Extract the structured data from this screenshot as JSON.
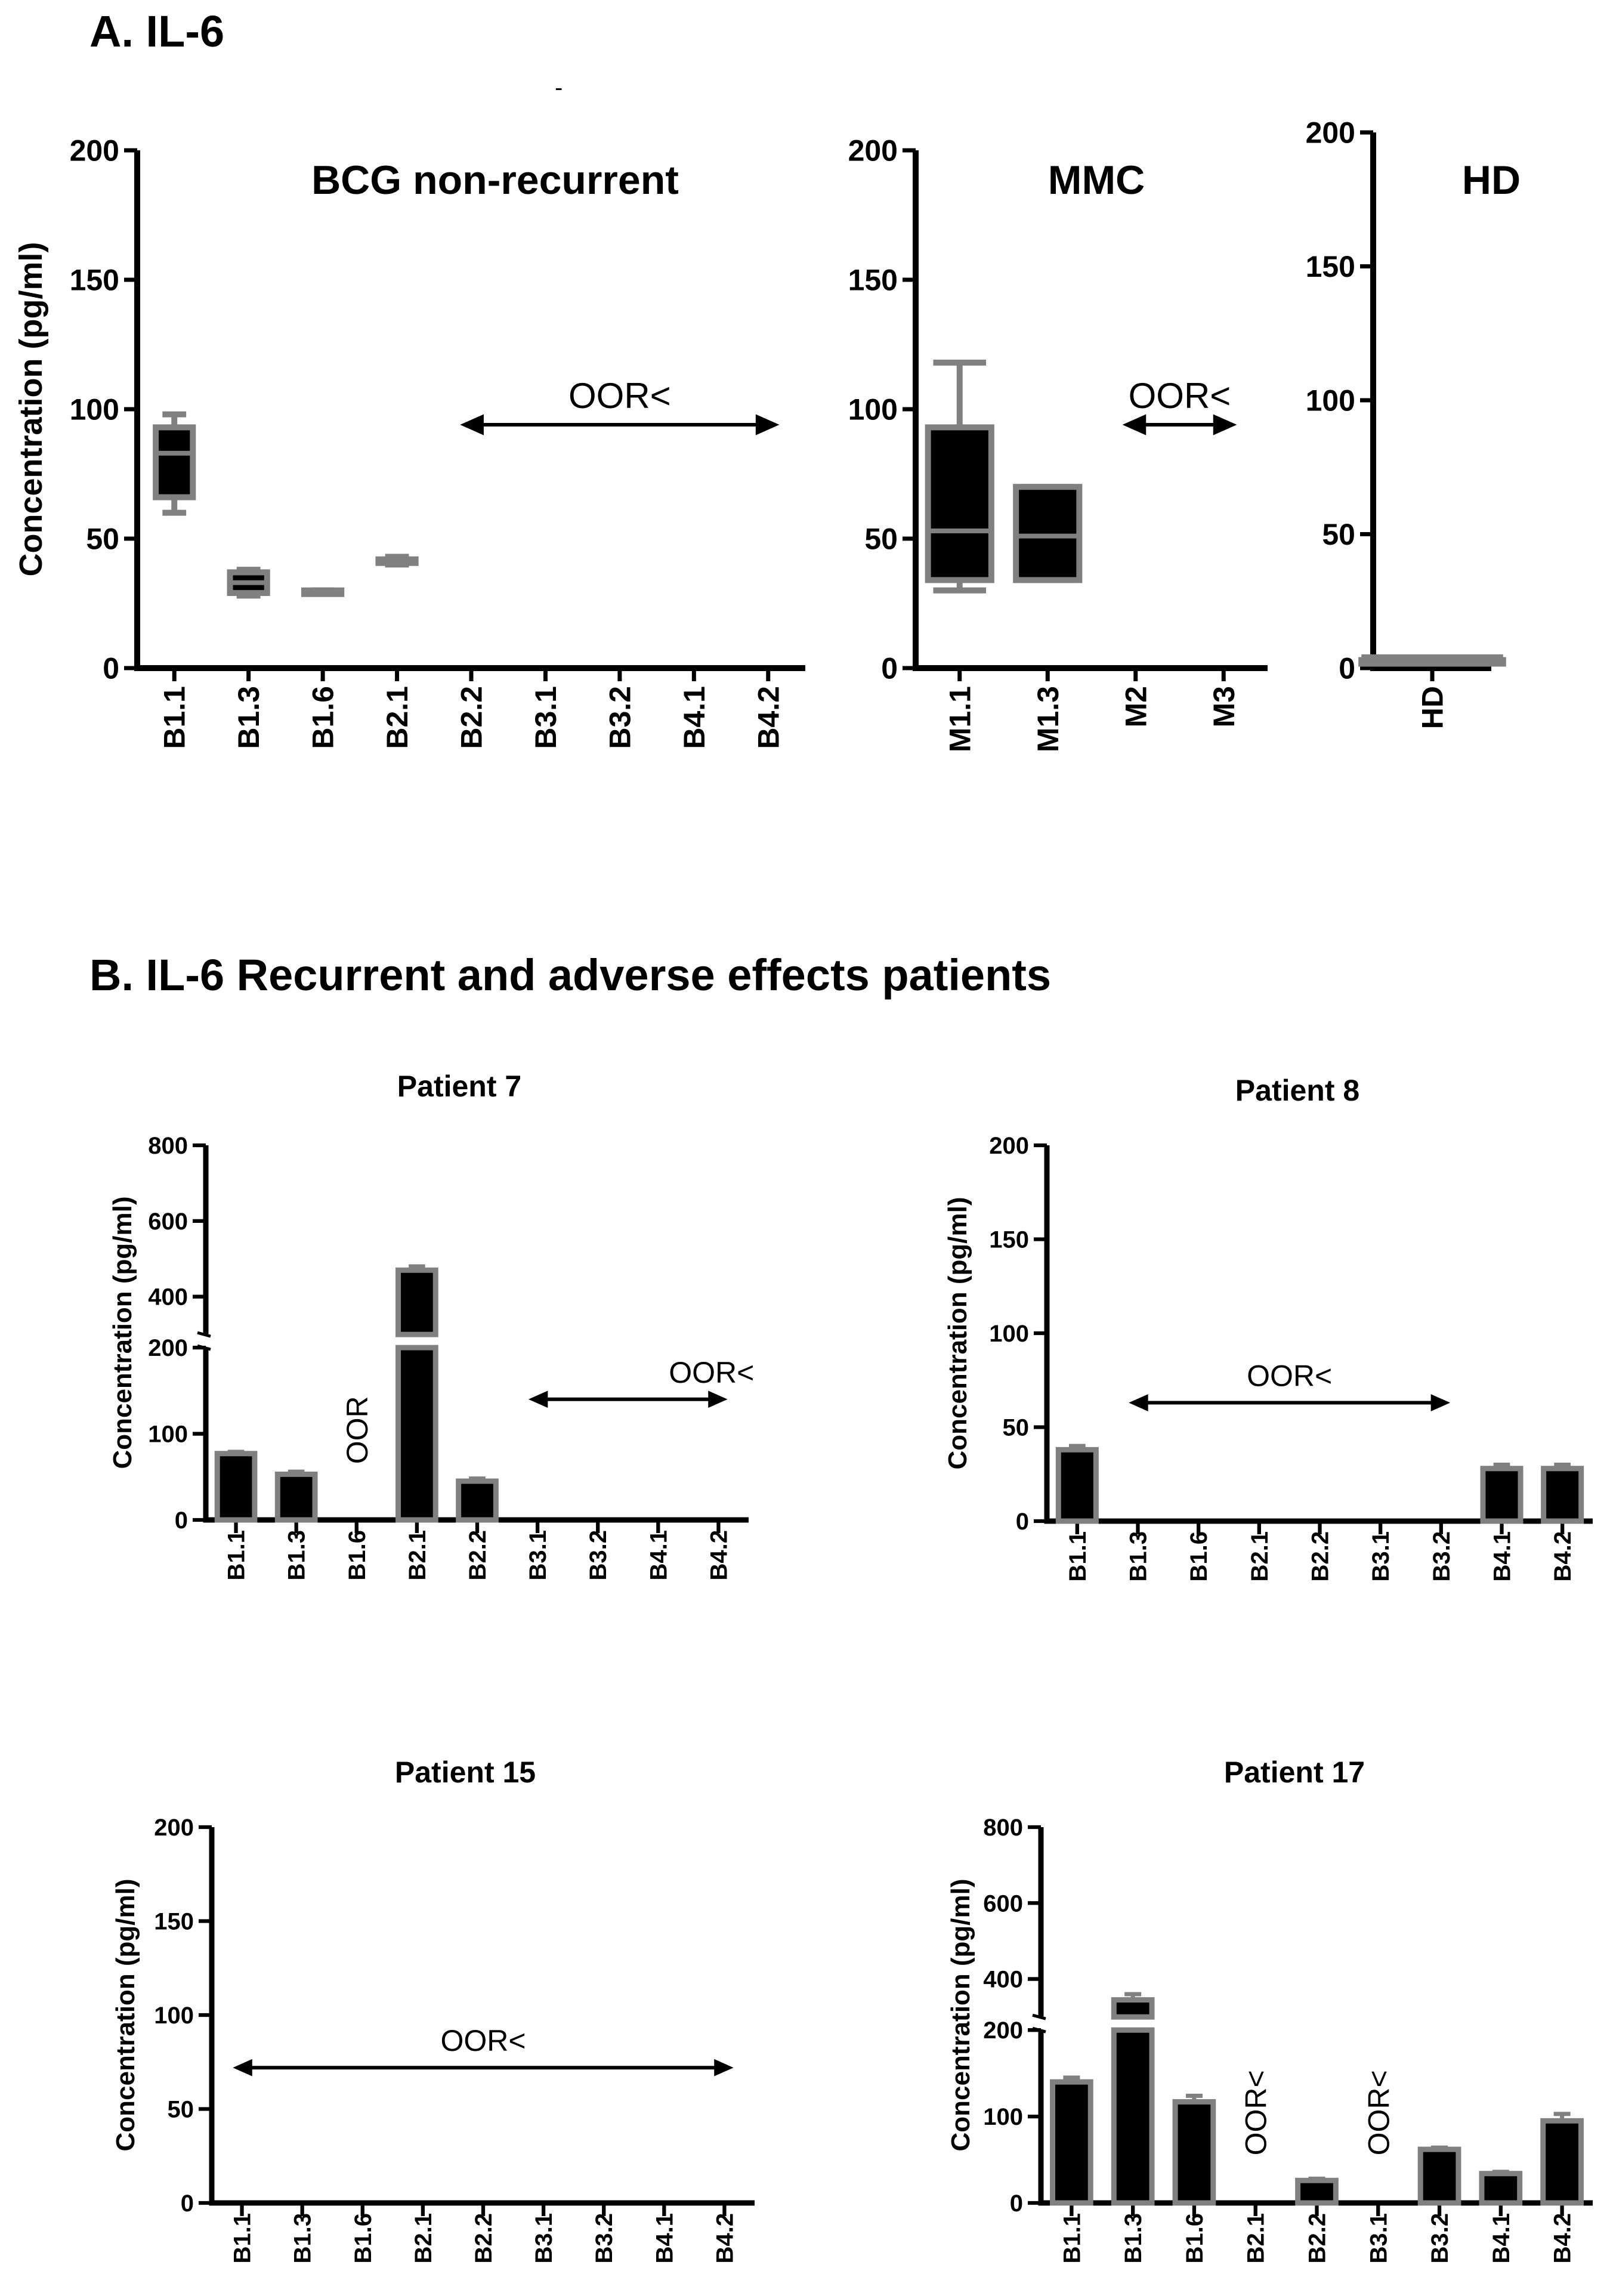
{
  "panel_a_title": "A. IL-6",
  "panel_b_title": "B. IL-6 Recurrent and adverse effects patients",
  "stray_mark": "-",
  "colors": {
    "fill": "#000000",
    "box_stroke": "#808080",
    "axis": "#000000"
  },
  "chart_data": [
    {
      "id": "A1",
      "type": "box",
      "title": "BCG non-recurrent",
      "ylabel": "Concentration (pg/ml)",
      "ylim": [
        0,
        200
      ],
      "yticks": [
        0,
        50,
        100,
        150,
        200
      ],
      "categories": [
        "B1.1",
        "B1.3",
        "B1.6",
        "B2.1",
        "B2.2",
        "B3.1",
        "B3.2",
        "B4.1",
        "B4.2"
      ],
      "boxes": [
        {
          "cat": "B1.1",
          "min": 60,
          "q1": 66,
          "median": 83,
          "q3": 93,
          "max": 98
        },
        {
          "cat": "B1.3",
          "min": 28,
          "q1": 29,
          "median": 33,
          "q3": 37,
          "max": 38
        },
        {
          "cat": "B1.6",
          "min": 29,
          "q1": 29,
          "median": 30,
          "q3": 30,
          "max": 30
        },
        {
          "cat": "B2.1",
          "min": 40,
          "q1": 41,
          "median": 41,
          "q3": 42,
          "max": 43
        }
      ],
      "annotations": [
        {
          "text": "OOR<",
          "from": "B2.2",
          "to": "B4.2",
          "y": 94
        }
      ]
    },
    {
      "id": "A2",
      "type": "box",
      "title": "MMC",
      "ylabel": "",
      "ylim": [
        0,
        200
      ],
      "yticks": [
        0,
        50,
        100,
        150,
        200
      ],
      "categories": [
        "M1.1",
        "M1.3",
        "M2",
        "M3"
      ],
      "boxes": [
        {
          "cat": "M1.1",
          "min": 30,
          "q1": 34,
          "median": 53,
          "q3": 93,
          "max": 118
        },
        {
          "cat": "M1.3",
          "min": 34,
          "q1": 34,
          "median": 51,
          "q3": 70,
          "max": 70
        }
      ],
      "annotations": [
        {
          "text": "OOR<",
          "from": "M2",
          "to": "M3",
          "y": 94
        }
      ]
    },
    {
      "id": "A3",
      "type": "box",
      "title": "HD",
      "ylabel": "",
      "ylim": [
        0,
        200
      ],
      "yticks": [
        0,
        50,
        100,
        150,
        200
      ],
      "categories": [
        "HD"
      ],
      "boxes": [
        {
          "cat": "HD",
          "min": 2,
          "q1": 3,
          "median": 3,
          "q3": 3,
          "max": 4
        }
      ],
      "annotations": []
    },
    {
      "id": "P7",
      "type": "bar",
      "title": "Patient 7",
      "ylabel": "Concentration (pg/ml)",
      "ylim": [
        0,
        800
      ],
      "axis_break": [
        200,
        300
      ],
      "yticks": [
        0,
        100,
        200,
        400,
        600,
        800
      ],
      "categories": [
        "B1.1",
        "B1.3",
        "B1.6",
        "B2.1",
        "B2.2",
        "B3.1",
        "B3.2",
        "B4.1",
        "B4.2"
      ],
      "values": [
        77,
        53,
        null,
        470,
        45,
        null,
        null,
        null,
        null
      ],
      "errors": [
        2,
        3,
        null,
        10,
        3,
        null,
        null,
        null,
        null
      ],
      "annotations": [
        {
          "text": "OOR",
          "at": "B1.6",
          "vertical": true
        },
        {
          "text": "OOR<",
          "from": "B3.1",
          "to": "B4.2",
          "y": 140
        }
      ]
    },
    {
      "id": "P8",
      "type": "bar",
      "title": "Patient 8",
      "ylabel": "Concentration (pg/ml)",
      "ylim": [
        0,
        200
      ],
      "yticks": [
        0,
        50,
        100,
        150,
        200
      ],
      "categories": [
        "B1.1",
        "B1.3",
        "B1.6",
        "B2.1",
        "B2.2",
        "B3.1",
        "B3.2",
        "B4.1",
        "B4.2"
      ],
      "values": [
        38,
        null,
        null,
        null,
        null,
        null,
        null,
        28,
        28
      ],
      "errors": [
        2,
        null,
        null,
        null,
        null,
        null,
        null,
        2,
        2
      ],
      "annotations": [
        {
          "text": "OOR<",
          "from": "B1.3",
          "to": "B3.2",
          "y": 63
        }
      ]
    },
    {
      "id": "P15",
      "type": "bar",
      "title": "Patient 15",
      "ylabel": "Concentration (pg/ml)",
      "ylim": [
        0,
        200
      ],
      "yticks": [
        0,
        50,
        100,
        150,
        200
      ],
      "categories": [
        "B1.1",
        "B1.3",
        "B1.6",
        "B2.1",
        "B2.2",
        "B3.1",
        "B3.2",
        "B4.1",
        "B4.2"
      ],
      "values": [
        null,
        null,
        null,
        null,
        null,
        null,
        null,
        null,
        null
      ],
      "errors": [
        null,
        null,
        null,
        null,
        null,
        null,
        null,
        null,
        null
      ],
      "annotations": [
        {
          "text": "OOR<",
          "from": "B1.1",
          "to": "B4.2",
          "y": 72
        }
      ]
    },
    {
      "id": "P17",
      "type": "bar",
      "title": "Patient 17",
      "ylabel": "Concentration (pg/ml)",
      "ylim": [
        0,
        800
      ],
      "axis_break": [
        200,
        300
      ],
      "yticks": [
        0,
        100,
        200,
        400,
        600,
        800
      ],
      "categories": [
        "B1.1",
        "B1.3",
        "B1.6",
        "B2.1",
        "B2.2",
        "B3.1",
        "B3.2",
        "B4.1",
        "B4.2"
      ],
      "values": [
        140,
        345,
        117,
        null,
        26,
        null,
        62,
        34,
        95
      ],
      "errors": [
        5,
        15,
        7,
        null,
        2,
        null,
        2,
        2,
        8
      ],
      "annotations": [
        {
          "text": "OOR<",
          "at": "B2.1",
          "vertical": true
        },
        {
          "text": "OOR<",
          "at": "B3.1",
          "vertical": true
        }
      ]
    }
  ]
}
